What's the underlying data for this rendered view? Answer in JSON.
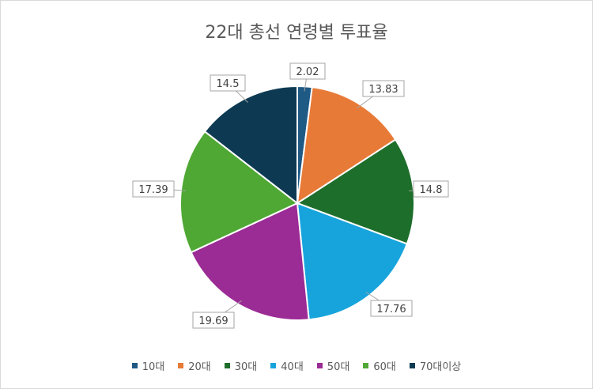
{
  "chart_data": {
    "type": "pie",
    "title": "22대 총선 연령별 투표율",
    "categories": [
      "10대",
      "20대",
      "30대",
      "40대",
      "50대",
      "60대",
      "70대이상"
    ],
    "values": [
      2.02,
      13.83,
      14.8,
      17.76,
      19.69,
      17.39,
      14.5
    ],
    "colors": [
      "#1f5a85",
      "#e87a37",
      "#1e6e2b",
      "#17a4dc",
      "#9b2b95",
      "#4fa834",
      "#0d3a52"
    ],
    "data_labels": [
      "2.02",
      "13.83",
      "14.8",
      "17.76",
      "19.69",
      "17.39",
      "14.5"
    ],
    "legend_position": "bottom"
  }
}
